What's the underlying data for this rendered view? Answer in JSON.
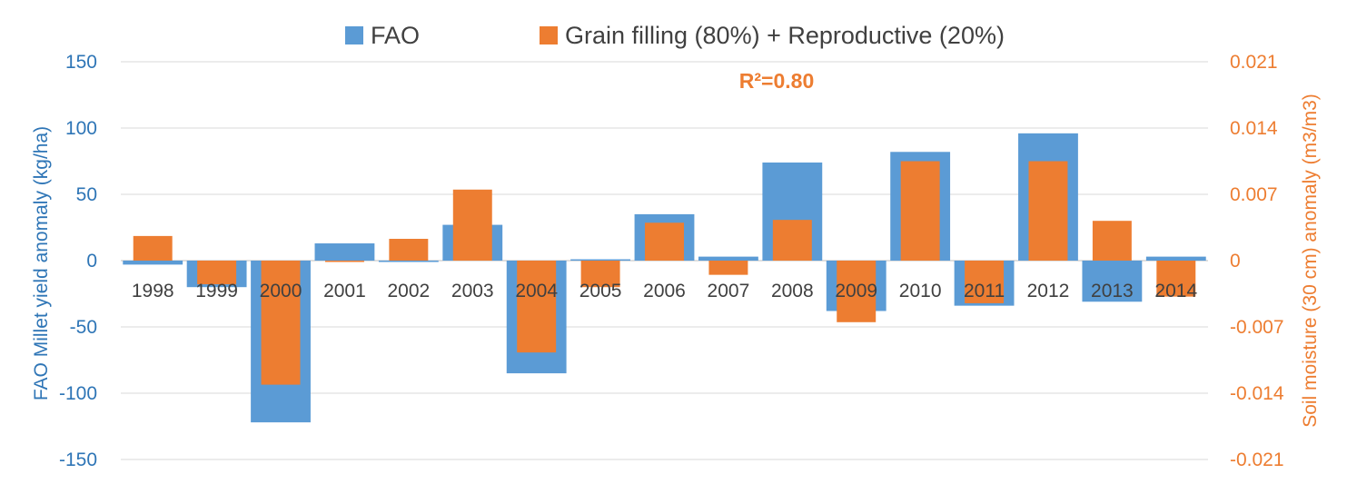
{
  "chart_data": {
    "type": "bar",
    "legend_position": "top",
    "grid": true,
    "categories": [
      "1998",
      "1999",
      "2000",
      "2001",
      "2002",
      "2003",
      "2004",
      "2005",
      "2006",
      "2007",
      "2008",
      "2009",
      "2010",
      "2011",
      "2012",
      "2013",
      "2014"
    ],
    "series": [
      {
        "name": "FAO",
        "axis": "left",
        "color": "#5b9bd5",
        "values": [
          -3,
          -20,
          -122,
          13,
          0,
          27,
          -85,
          1,
          35,
          3,
          74,
          -38,
          82,
          -34,
          96,
          -31,
          3
        ]
      },
      {
        "name": "Grain filling (80%) + Reproductive (20%)",
        "axis": "right",
        "color": "#ed7d31",
        "values": [
          0.0026,
          -0.0025,
          -0.0131,
          0.0,
          0.0023,
          0.0075,
          -0.0097,
          -0.0028,
          0.004,
          -0.0015,
          0.0043,
          -0.0065,
          0.0105,
          -0.0045,
          0.0105,
          0.0042,
          -0.0038
        ]
      }
    ],
    "y_left": {
      "label": "FAO Millet yield anomaly (kg/ha)",
      "ylim": [
        -150,
        150
      ],
      "ticks": [
        "150",
        "100",
        "50",
        "0",
        "-50",
        "-100",
        "-150"
      ],
      "color": "#2e75b6"
    },
    "y_right": {
      "label": "Soil moisture (30 cm) anomaly (m3/m3)",
      "ylim": [
        -0.021,
        0.021
      ],
      "ticks": [
        "0.021",
        "0.014",
        "0.007",
        "0",
        "-0.007",
        "-0.014",
        "-0.021"
      ],
      "color": "#ed7d31"
    },
    "annotation": "R²=0.80"
  }
}
